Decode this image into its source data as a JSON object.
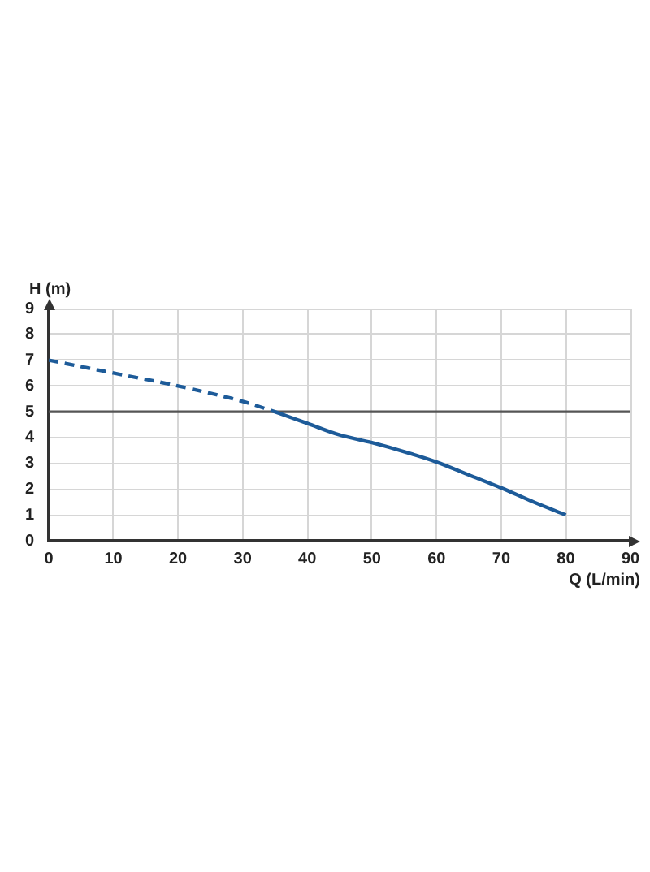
{
  "chart_data": {
    "type": "line",
    "xlabel": "Q (L/min)",
    "ylabel": "H (m)",
    "xlim": [
      0,
      90
    ],
    "ylim": [
      0,
      9
    ],
    "xticks": [
      0,
      10,
      20,
      30,
      40,
      50,
      60,
      70,
      80,
      90
    ],
    "yticks": [
      0,
      1,
      2,
      3,
      4,
      5,
      6,
      7,
      8,
      9
    ],
    "grid": true,
    "marker": "none",
    "series": [
      {
        "color": "#1d5b99",
        "line_style": "dashed",
        "x": [
          0,
          10,
          20,
          30,
          35
        ],
        "values": [
          7,
          6.5,
          6,
          5.4,
          5
        ]
      },
      {
        "color": "#1d5b99",
        "line_style": "solid",
        "x": [
          35,
          40,
          45,
          50,
          55,
          60,
          65,
          70,
          75,
          80
        ],
        "values": [
          5,
          4.55,
          4.1,
          3.8,
          3.45,
          3.05,
          2.55,
          2.05,
          1.5,
          1
        ]
      }
    ],
    "ref_lines": [
      {
        "axis": "y",
        "value": 5,
        "color": "#555555"
      }
    ]
  }
}
